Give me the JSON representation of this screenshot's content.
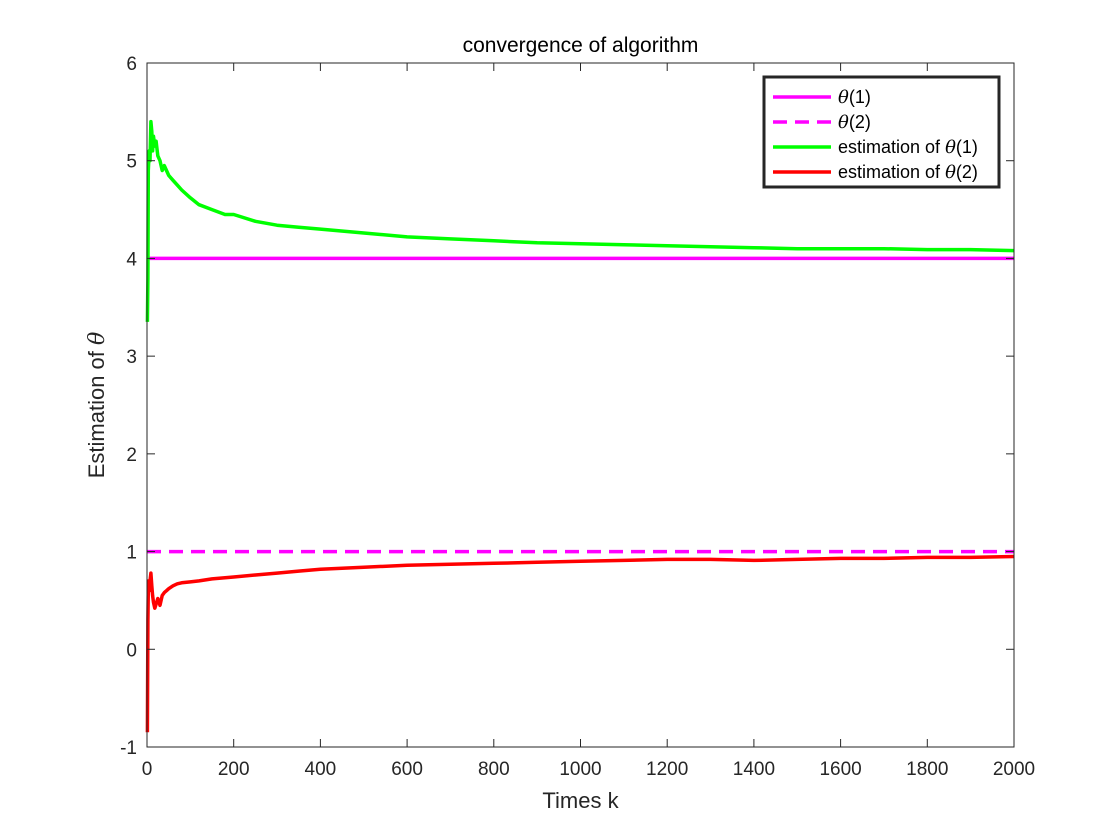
{
  "chart_data": {
    "type": "line",
    "title": "convergence of algorithm",
    "xlabel": "Times k",
    "ylabel_prefix": "Estimation of ",
    "ylabel_symbol": "θ",
    "xlim": [
      0,
      2000
    ],
    "ylim": [
      -1,
      6
    ],
    "xticks": [
      0,
      200,
      400,
      600,
      800,
      1000,
      1200,
      1400,
      1600,
      1800,
      2000
    ],
    "yticks": [
      -1,
      0,
      1,
      2,
      3,
      4,
      5,
      6
    ],
    "grid": false,
    "legend_placement": "top-right",
    "series": [
      {
        "name_prefix": "",
        "name_symbol": "θ",
        "name_suffix": "(1)",
        "color": "#ff00ff",
        "dash": "solid",
        "x": [
          0,
          2000
        ],
        "y": [
          4,
          4
        ]
      },
      {
        "name_prefix": "",
        "name_symbol": "θ",
        "name_suffix": "(2)",
        "color": "#ff00ff",
        "dash": "dashed",
        "x": [
          0,
          2000
        ],
        "y": [
          1,
          1
        ]
      },
      {
        "name_prefix": "estimation of ",
        "name_symbol": "θ",
        "name_suffix": "(1)",
        "color": "#00ff00",
        "dash": "solid",
        "x": [
          1,
          2,
          3,
          5,
          7,
          9,
          11,
          13,
          15,
          18,
          21,
          25,
          30,
          35,
          40,
          50,
          60,
          70,
          80,
          100,
          120,
          150,
          180,
          200,
          250,
          300,
          350,
          400,
          500,
          600,
          700,
          800,
          900,
          1000,
          1100,
          1200,
          1300,
          1400,
          1500,
          1600,
          1700,
          1800,
          1900,
          2000
        ],
        "y": [
          3.35,
          3.8,
          4.9,
          5.1,
          5.0,
          5.4,
          5.3,
          5.1,
          5.25,
          5.15,
          5.2,
          5.05,
          5.0,
          4.9,
          4.95,
          4.85,
          4.8,
          4.75,
          4.7,
          4.62,
          4.55,
          4.5,
          4.45,
          4.45,
          4.38,
          4.34,
          4.32,
          4.3,
          4.26,
          4.22,
          4.2,
          4.18,
          4.16,
          4.15,
          4.14,
          4.13,
          4.12,
          4.11,
          4.1,
          4.1,
          4.1,
          4.09,
          4.09,
          4.08
        ]
      },
      {
        "name_prefix": "estimation of ",
        "name_symbol": "θ",
        "name_suffix": "(2)",
        "color": "#ff0000",
        "dash": "solid",
        "x": [
          1,
          2,
          3,
          4,
          5,
          7,
          9,
          11,
          13,
          15,
          18,
          20,
          25,
          30,
          35,
          40,
          45,
          50,
          60,
          70,
          80,
          100,
          120,
          150,
          200,
          250,
          300,
          350,
          400,
          500,
          600,
          700,
          800,
          900,
          1000,
          1100,
          1200,
          1300,
          1400,
          1500,
          1600,
          1700,
          1800,
          1900,
          2000
        ],
        "y": [
          -0.85,
          0.3,
          0.6,
          0.7,
          0.6,
          0.7,
          0.78,
          0.65,
          0.55,
          0.48,
          0.42,
          0.45,
          0.52,
          0.45,
          0.55,
          0.58,
          0.6,
          0.62,
          0.65,
          0.67,
          0.68,
          0.69,
          0.7,
          0.72,
          0.74,
          0.76,
          0.78,
          0.8,
          0.82,
          0.84,
          0.86,
          0.87,
          0.88,
          0.89,
          0.9,
          0.91,
          0.92,
          0.92,
          0.91,
          0.92,
          0.93,
          0.93,
          0.94,
          0.94,
          0.95
        ]
      }
    ]
  }
}
